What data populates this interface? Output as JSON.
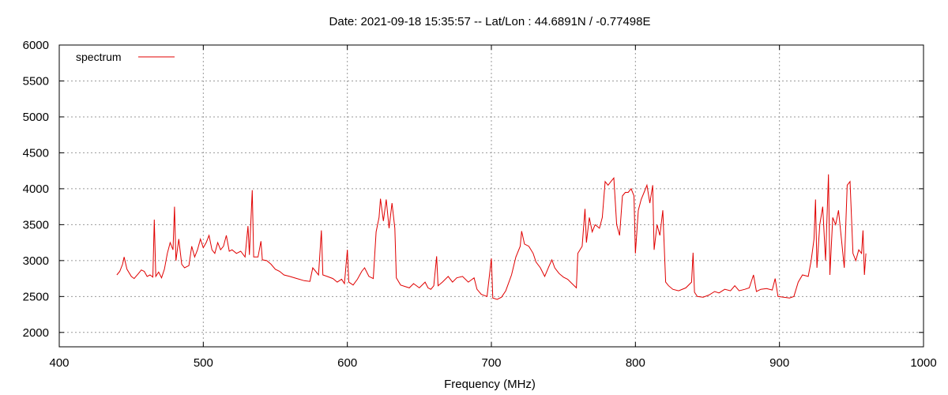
{
  "chart_data": {
    "type": "line",
    "title": "Date: 2021-09-18 15:35:57  --  Lat/Lon : 44.6891N / -0.77498E",
    "xlabel": "Frequency (MHz)",
    "ylabel": "",
    "xlim": [
      400,
      1000
    ],
    "ylim": [
      1800,
      6000
    ],
    "x_ticks": [
      400,
      500,
      600,
      700,
      800,
      900,
      1000
    ],
    "y_ticks": [
      2000,
      2500,
      3000,
      3500,
      4000,
      4500,
      5000,
      5500,
      6000
    ],
    "grid": true,
    "legend_position": "top-left",
    "colors": {
      "series": "#e00000"
    },
    "series": [
      {
        "name": "spectrum",
        "points": [
          [
            440,
            2800
          ],
          [
            442,
            2850
          ],
          [
            444,
            2950
          ],
          [
            445,
            3050
          ],
          [
            447,
            2880
          ],
          [
            450,
            2780
          ],
          [
            452,
            2750
          ],
          [
            455,
            2820
          ],
          [
            457,
            2870
          ],
          [
            459,
            2850
          ],
          [
            461,
            2780
          ],
          [
            463,
            2800
          ],
          [
            465,
            2770
          ],
          [
            466,
            3570
          ],
          [
            467,
            2780
          ],
          [
            469,
            2840
          ],
          [
            471,
            2760
          ],
          [
            473,
            2880
          ],
          [
            475,
            3100
          ],
          [
            477,
            3250
          ],
          [
            479,
            3150
          ],
          [
            480,
            3750
          ],
          [
            481,
            3000
          ],
          [
            483,
            3300
          ],
          [
            485,
            2950
          ],
          [
            487,
            2900
          ],
          [
            490,
            2930
          ],
          [
            492,
            3200
          ],
          [
            494,
            3050
          ],
          [
            496,
            3150
          ],
          [
            498,
            3300
          ],
          [
            500,
            3180
          ],
          [
            502,
            3250
          ],
          [
            504,
            3350
          ],
          [
            506,
            3150
          ],
          [
            508,
            3100
          ],
          [
            510,
            3250
          ],
          [
            512,
            3150
          ],
          [
            514,
            3200
          ],
          [
            516,
            3350
          ],
          [
            518,
            3130
          ],
          [
            520,
            3150
          ],
          [
            523,
            3100
          ],
          [
            526,
            3130
          ],
          [
            529,
            3050
          ],
          [
            531,
            3480
          ],
          [
            532,
            3080
          ],
          [
            534,
            3980
          ],
          [
            535,
            3050
          ],
          [
            538,
            3050
          ],
          [
            540,
            3270
          ],
          [
            541,
            3010
          ],
          [
            544,
            3000
          ],
          [
            547,
            2950
          ],
          [
            550,
            2880
          ],
          [
            553,
            2850
          ],
          [
            556,
            2800
          ],
          [
            560,
            2780
          ],
          [
            565,
            2750
          ],
          [
            570,
            2720
          ],
          [
            574,
            2710
          ],
          [
            576,
            2900
          ],
          [
            578,
            2850
          ],
          [
            580,
            2800
          ],
          [
            582,
            3420
          ],
          [
            583,
            2800
          ],
          [
            586,
            2780
          ],
          [
            590,
            2750
          ],
          [
            593,
            2700
          ],
          [
            596,
            2740
          ],
          [
            598,
            2680
          ],
          [
            600,
            3150
          ],
          [
            601,
            2700
          ],
          [
            604,
            2660
          ],
          [
            607,
            2740
          ],
          [
            610,
            2850
          ],
          [
            612,
            2900
          ],
          [
            615,
            2780
          ],
          [
            618,
            2750
          ],
          [
            620,
            3400
          ],
          [
            622,
            3600
          ],
          [
            623,
            3860
          ],
          [
            625,
            3550
          ],
          [
            627,
            3850
          ],
          [
            629,
            3450
          ],
          [
            631,
            3800
          ],
          [
            633,
            3450
          ],
          [
            634,
            2760
          ],
          [
            637,
            2660
          ],
          [
            640,
            2640
          ],
          [
            643,
            2620
          ],
          [
            646,
            2680
          ],
          [
            650,
            2620
          ],
          [
            654,
            2700
          ],
          [
            656,
            2620
          ],
          [
            658,
            2600
          ],
          [
            660,
            2650
          ],
          [
            662,
            3060
          ],
          [
            663,
            2650
          ],
          [
            666,
            2700
          ],
          [
            670,
            2780
          ],
          [
            673,
            2700
          ],
          [
            676,
            2760
          ],
          [
            680,
            2780
          ],
          [
            684,
            2700
          ],
          [
            688,
            2760
          ],
          [
            690,
            2600
          ],
          [
            693,
            2530
          ],
          [
            697,
            2500
          ],
          [
            700,
            3030
          ],
          [
            701,
            2480
          ],
          [
            704,
            2460
          ],
          [
            707,
            2490
          ],
          [
            710,
            2580
          ],
          [
            714,
            2800
          ],
          [
            717,
            3050
          ],
          [
            720,
            3200
          ],
          [
            721,
            3410
          ],
          [
            723,
            3230
          ],
          [
            726,
            3200
          ],
          [
            729,
            3100
          ],
          [
            731,
            2980
          ],
          [
            734,
            2900
          ],
          [
            737,
            2780
          ],
          [
            740,
            2920
          ],
          [
            742,
            3010
          ],
          [
            744,
            2900
          ],
          [
            747,
            2820
          ],
          [
            750,
            2770
          ],
          [
            753,
            2740
          ],
          [
            756,
            2680
          ],
          [
            759,
            2620
          ],
          [
            760,
            3100
          ],
          [
            763,
            3200
          ],
          [
            765,
            3720
          ],
          [
            766,
            3250
          ],
          [
            768,
            3600
          ],
          [
            770,
            3400
          ],
          [
            772,
            3500
          ],
          [
            775,
            3450
          ],
          [
            777,
            3600
          ],
          [
            779,
            4100
          ],
          [
            781,
            4050
          ],
          [
            783,
            4100
          ],
          [
            785,
            4150
          ],
          [
            787,
            3500
          ],
          [
            789,
            3350
          ],
          [
            791,
            3900
          ],
          [
            793,
            3950
          ],
          [
            795,
            3950
          ],
          [
            797,
            4000
          ],
          [
            799,
            3900
          ],
          [
            800,
            3100
          ],
          [
            802,
            3700
          ],
          [
            804,
            3850
          ],
          [
            806,
            3950
          ],
          [
            808,
            4050
          ],
          [
            810,
            3800
          ],
          [
            812,
            4050
          ],
          [
            813,
            3150
          ],
          [
            815,
            3500
          ],
          [
            817,
            3350
          ],
          [
            819,
            3700
          ],
          [
            821,
            2700
          ],
          [
            823,
            2650
          ],
          [
            826,
            2600
          ],
          [
            830,
            2580
          ],
          [
            835,
            2620
          ],
          [
            839,
            2700
          ],
          [
            840,
            3110
          ],
          [
            841,
            2560
          ],
          [
            843,
            2500
          ],
          [
            847,
            2490
          ],
          [
            851,
            2520
          ],
          [
            855,
            2570
          ],
          [
            858,
            2550
          ],
          [
            862,
            2600
          ],
          [
            866,
            2580
          ],
          [
            869,
            2650
          ],
          [
            872,
            2580
          ],
          [
            876,
            2600
          ],
          [
            879,
            2620
          ],
          [
            882,
            2800
          ],
          [
            884,
            2570
          ],
          [
            887,
            2600
          ],
          [
            891,
            2610
          ],
          [
            895,
            2590
          ],
          [
            897,
            2750
          ],
          [
            899,
            2500
          ],
          [
            903,
            2490
          ],
          [
            907,
            2480
          ],
          [
            910,
            2500
          ],
          [
            913,
            2700
          ],
          [
            916,
            2800
          ],
          [
            920,
            2780
          ],
          [
            922,
            3000
          ],
          [
            924,
            3300
          ],
          [
            925,
            3850
          ],
          [
            926,
            2900
          ],
          [
            928,
            3500
          ],
          [
            930,
            3750
          ],
          [
            932,
            3000
          ],
          [
            934,
            4200
          ],
          [
            935,
            2800
          ],
          [
            937,
            3600
          ],
          [
            939,
            3500
          ],
          [
            941,
            3700
          ],
          [
            943,
            3300
          ],
          [
            945,
            2900
          ],
          [
            947,
            4050
          ],
          [
            949,
            4100
          ],
          [
            951,
            3100
          ],
          [
            953,
            3000
          ],
          [
            955,
            3150
          ],
          [
            957,
            3100
          ],
          [
            958,
            3420
          ],
          [
            959,
            2800
          ],
          [
            960,
            3100
          ]
        ]
      }
    ]
  }
}
